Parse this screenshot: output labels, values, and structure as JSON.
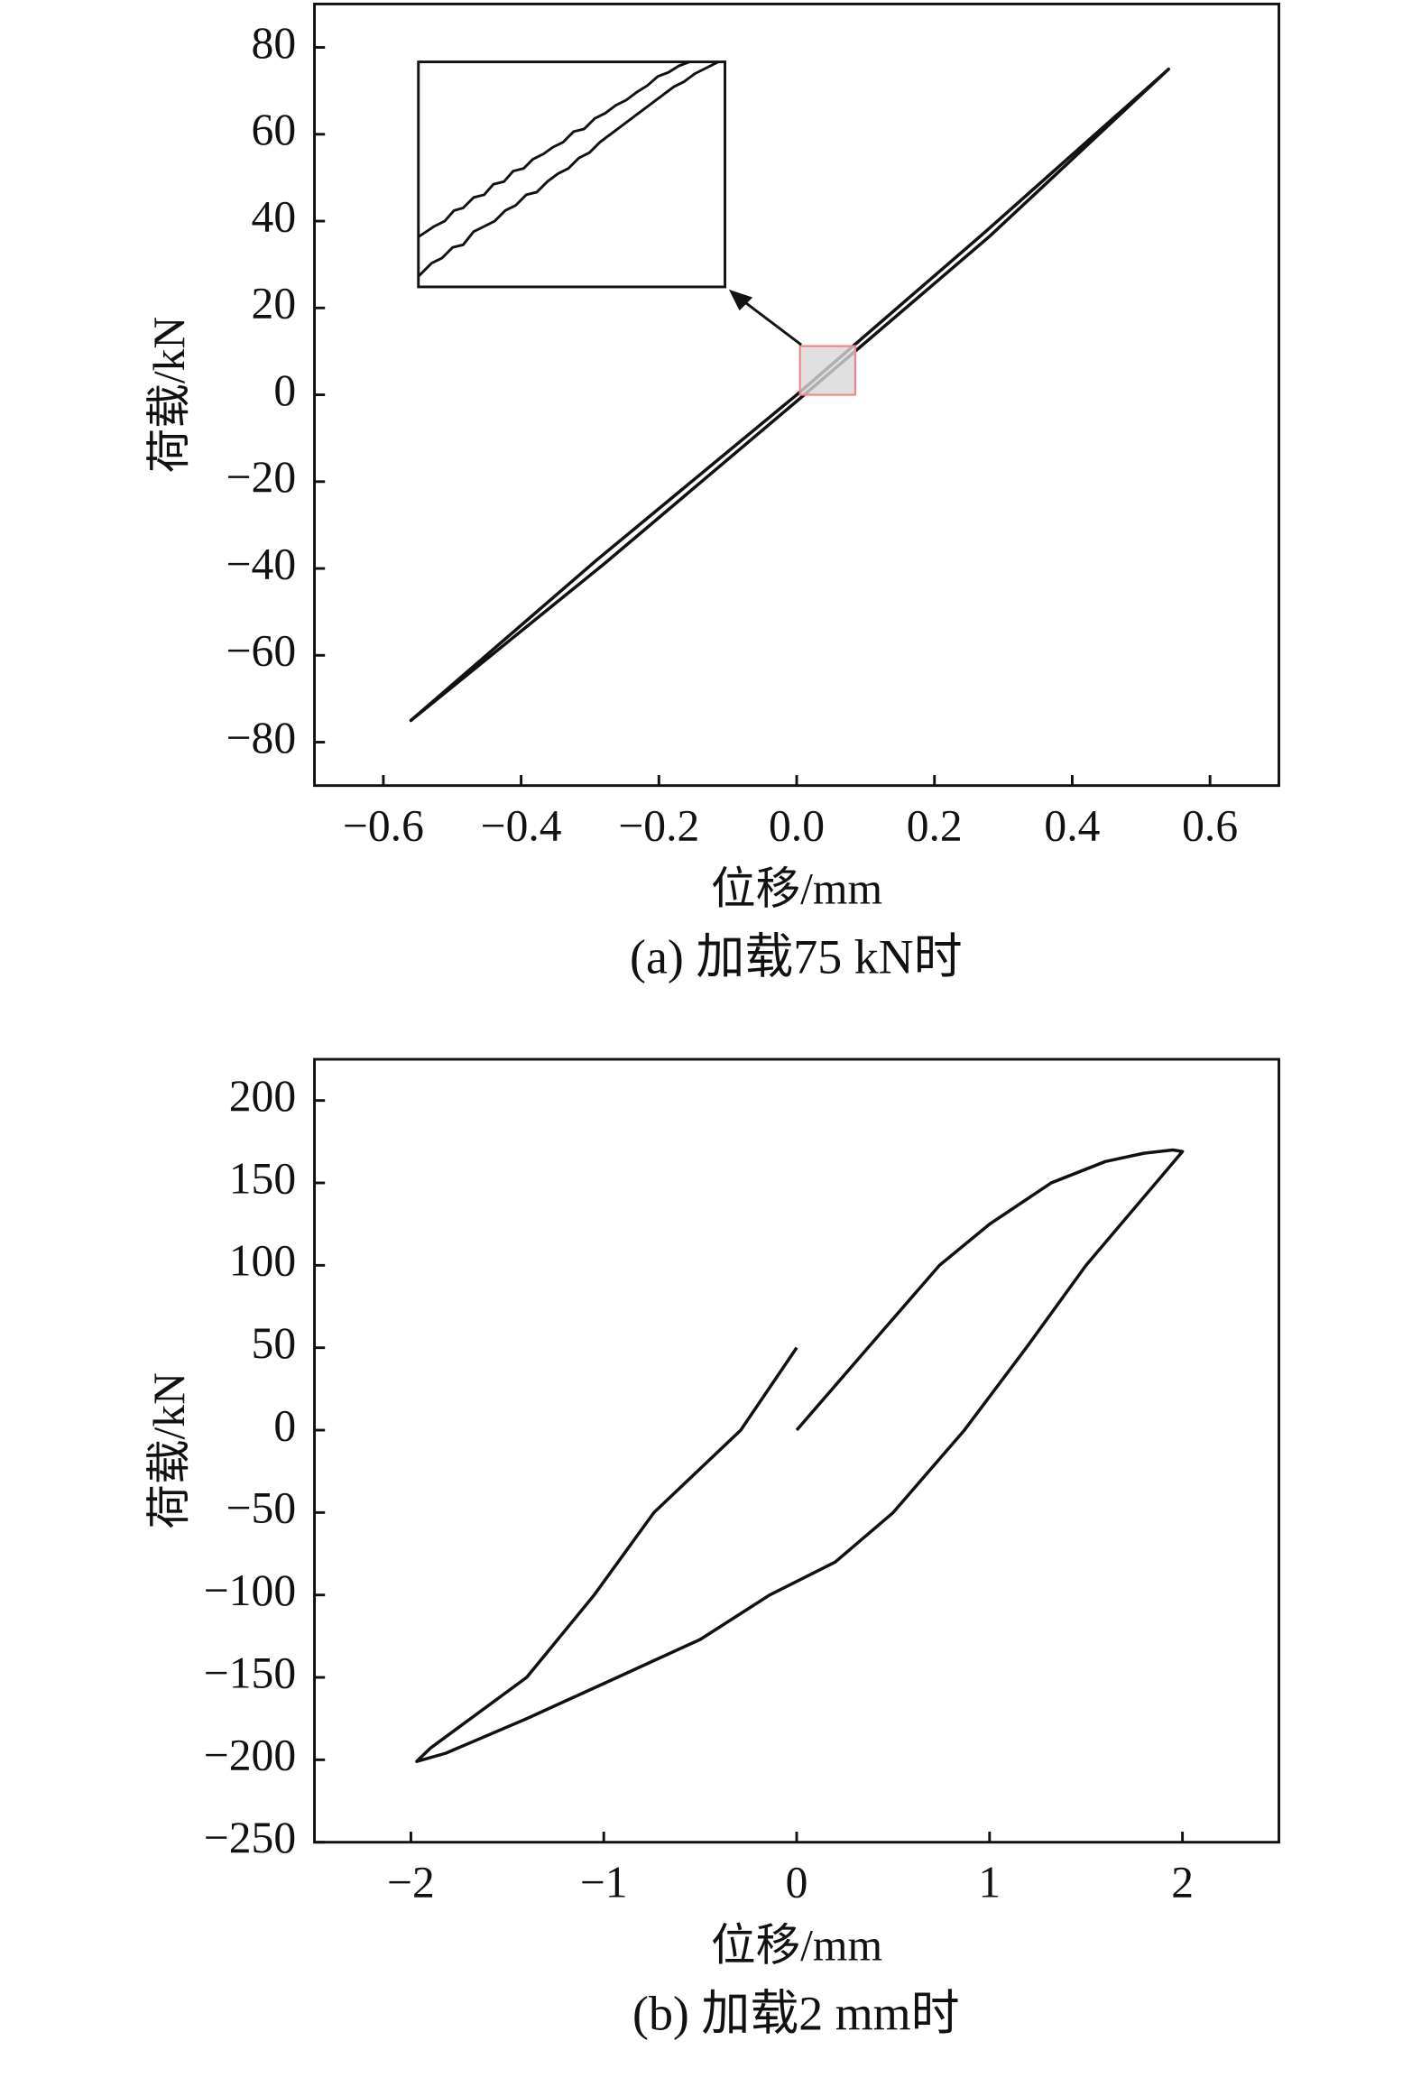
{
  "chart_data": [
    {
      "type": "line",
      "caption": "(a) 加载75 kN时",
      "xlabel": "位移/mm",
      "ylabel": "荷载/kN",
      "color": "#111111",
      "x": [
        0,
        0.27,
        0.54,
        0.28,
        0,
        -0.28,
        -0.56,
        -0.29,
        0
      ],
      "values": [
        0,
        37,
        75,
        36.5,
        -1.5,
        -39,
        -75,
        -38,
        0
      ],
      "xlim": [
        -0.7,
        0.7
      ],
      "xticks": [
        {
          "value": -0.6,
          "label": "−0.6"
        },
        {
          "value": -0.4,
          "label": "−0.4"
        },
        {
          "value": -0.2,
          "label": "−0.2"
        },
        {
          "value": 0,
          "label": "0.0"
        },
        0.2,
        0.4,
        0.6
      ],
      "ylim": [
        -90,
        90
      ],
      "yticks": [
        80,
        60,
        40,
        20,
        0,
        {
          "value": -20,
          "label": "−20"
        },
        {
          "value": -40,
          "label": "−40"
        },
        {
          "value": -60,
          "label": "−60"
        },
        {
          "value": -80,
          "label": "−80"
        }
      ]
    },
    {
      "type": "line",
      "caption": "(b) 加载2 mm时",
      "xlabel": "位移/mm",
      "ylabel": "荷载/kN",
      "color": "#111111",
      "x": [
        0,
        0.37,
        0.74,
        1.0,
        1.32,
        1.6,
        1.8,
        1.95,
        2.0,
        1.5,
        1.19,
        0.87,
        0.5,
        0.2,
        -0.14,
        -0.5,
        -0.93,
        -1.4,
        -1.82,
        -1.97,
        -1.9,
        -1.4,
        -1.05,
        -0.74,
        -0.29,
        0
      ],
      "values": [
        0,
        50,
        100,
        125,
        150,
        163,
        168,
        170,
        169,
        100,
        50,
        0,
        -50,
        -80,
        -100,
        -127,
        -150,
        -175,
        -196,
        -201,
        -193,
        -150,
        -100,
        -50,
        0,
        50
      ],
      "xlim": [
        -2.5,
        2.5
      ],
      "xticks": [
        {
          "value": -2,
          "label": "−2"
        },
        {
          "value": -1,
          "label": "−1"
        },
        0,
        1,
        2
      ],
      "ylim": [
        -250,
        225
      ],
      "yticks": [
        200,
        150,
        100,
        50,
        0,
        {
          "value": -50,
          "label": "−50"
        },
        {
          "value": -100,
          "label": "−100"
        },
        {
          "value": -150,
          "label": "−150"
        },
        {
          "value": -200,
          "label": "−200"
        },
        {
          "value": -250,
          "label": "−250"
        }
      ]
    }
  ]
}
